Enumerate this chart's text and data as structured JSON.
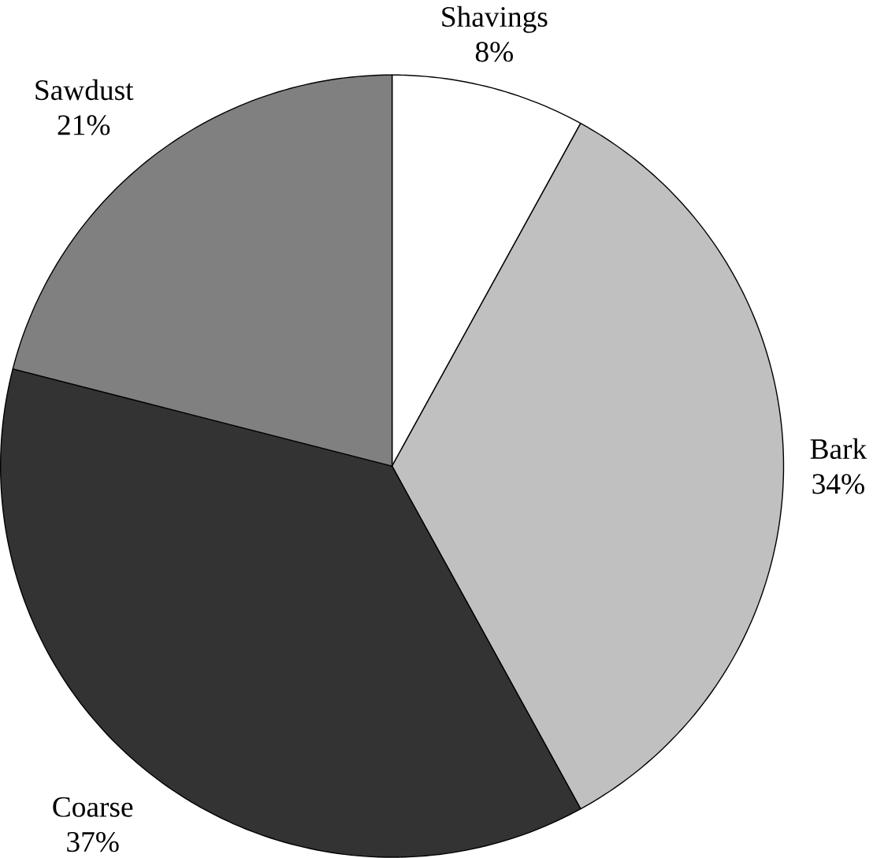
{
  "chart_data": {
    "type": "pie",
    "categories": [
      "Shavings",
      "Bark",
      "Coarse",
      "Sawdust"
    ],
    "values": [
      8,
      34,
      37,
      21
    ],
    "value_labels": [
      "8%",
      "34%",
      "37%",
      "21%"
    ],
    "colors": [
      "#ffffff",
      "#c0c0c0",
      "#333333",
      "#808080"
    ]
  }
}
